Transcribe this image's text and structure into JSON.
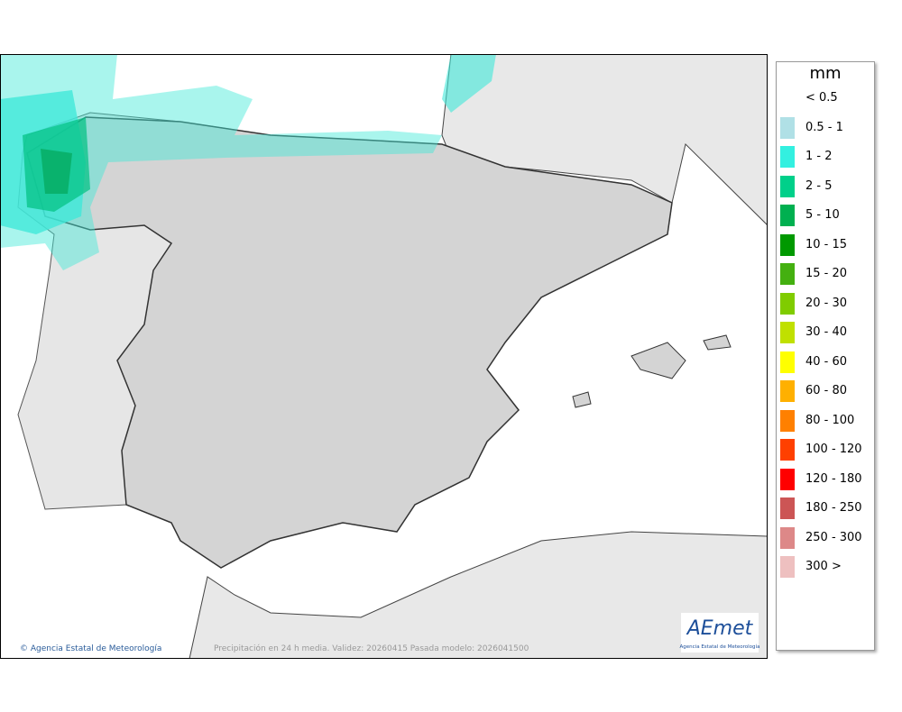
{
  "legend": {
    "title": "mm",
    "items": [
      {
        "label": "< 0.5",
        "color": "#ffffff"
      },
      {
        "label": "0.5 - 1",
        "color": "#b0e0e6"
      },
      {
        "label": "1 - 2",
        "color": "#33f0e0"
      },
      {
        "label": "2 - 5",
        "color": "#00d08a"
      },
      {
        "label": "5 - 10",
        "color": "#00b050"
      },
      {
        "label": "10 - 15",
        "color": "#009900"
      },
      {
        "label": "15 - 20",
        "color": "#44b010"
      },
      {
        "label": "20 - 30",
        "color": "#80cc00"
      },
      {
        "label": "30 - 40",
        "color": "#c0e000"
      },
      {
        "label": "40 - 60",
        "color": "#ffff00"
      },
      {
        "label": "60 - 80",
        "color": "#ffb000"
      },
      {
        "label": "80 - 100",
        "color": "#ff8000"
      },
      {
        "label": "100 - 120",
        "color": "#ff4000"
      },
      {
        "label": "120 - 180",
        "color": "#ff0000"
      },
      {
        "label": "180 - 250",
        "color": "#cc5555"
      },
      {
        "label": "250 - 300",
        "color": "#dd8888"
      },
      {
        "label": "300 >",
        "color": "#eec0c0"
      }
    ]
  },
  "footer": {
    "credit": "© Agencia Estatal de Meteorología",
    "caption": "Precipitación en 24 h media. Validez: 20260415 Pasada modelo: 2026041500"
  },
  "logo": {
    "text": "AEmet",
    "subtitle": "Agencia Estatal de Meteorología"
  }
}
